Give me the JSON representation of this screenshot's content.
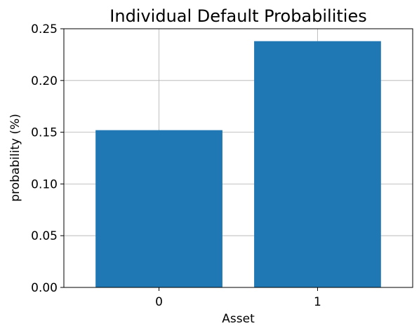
{
  "colors": {
    "bar": "#1f77b4",
    "grid": "#b0b0b0",
    "axis": "#000000",
    "background": "#ffffff"
  },
  "chart_data": {
    "type": "bar",
    "title": "Individual Default Probabilities",
    "xlabel": "Asset",
    "ylabel": "probability (%)",
    "categories": [
      "0",
      "1"
    ],
    "values": [
      0.152,
      0.238
    ],
    "ylim": [
      0,
      0.25
    ],
    "yticks": [
      "0.00",
      "0.05",
      "0.10",
      "0.15",
      "0.20",
      "0.25"
    ],
    "grid": true,
    "legend": "none"
  }
}
